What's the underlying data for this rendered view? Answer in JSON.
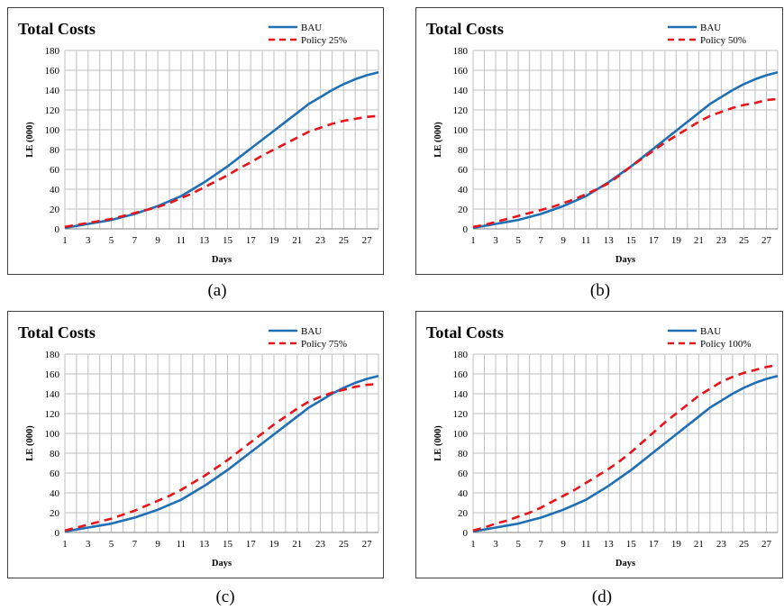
{
  "colors": {
    "bau": "#1F6FB4",
    "policy": "#E8141B",
    "grid": "#BFBFBF",
    "frame": "#404040"
  },
  "chart_data": [
    {
      "type": "line",
      "caption": "(a)",
      "title": "Total Costs",
      "xlabel": "Days",
      "ylabel": "LE (000)",
      "xlim": [
        1,
        28
      ],
      "ylim": [
        0,
        180
      ],
      "yticks": [
        0,
        20,
        40,
        60,
        80,
        100,
        120,
        140,
        160,
        180
      ],
      "xticks": [
        1,
        3,
        5,
        7,
        9,
        11,
        13,
        15,
        17,
        19,
        21,
        23,
        25,
        27
      ],
      "legend": "top-right",
      "grid": true,
      "series": [
        {
          "name": "BAU",
          "style": "solid",
          "x": [
            1,
            2,
            3,
            4,
            5,
            6,
            7,
            8,
            9,
            10,
            11,
            12,
            13,
            14,
            15,
            16,
            17,
            18,
            19,
            20,
            21,
            22,
            23,
            24,
            25,
            26,
            27,
            28
          ],
          "values": [
            1,
            3,
            5,
            7,
            9,
            12,
            15,
            19,
            23,
            28,
            33,
            40,
            47,
            55,
            63,
            72,
            81,
            90,
            99,
            108,
            117,
            126,
            133,
            140,
            146,
            151,
            155,
            158
          ]
        },
        {
          "name": "Policy 25%",
          "style": "dashed",
          "x": [
            1,
            2,
            3,
            4,
            5,
            6,
            7,
            8,
            9,
            10,
            11,
            12,
            13,
            14,
            15,
            16,
            17,
            18,
            19,
            20,
            21,
            22,
            23,
            24,
            25,
            26,
            27,
            28
          ],
          "values": [
            2,
            4,
            6,
            8,
            10,
            13,
            16,
            19,
            22,
            26,
            31,
            36,
            42,
            48,
            54,
            61,
            67,
            74,
            80,
            86,
            92,
            98,
            102,
            106,
            109,
            111,
            113,
            114
          ]
        }
      ]
    },
    {
      "type": "line",
      "caption": "(b)",
      "title": "Total Costs",
      "xlabel": "Days",
      "ylabel": "LE (000)",
      "xlim": [
        1,
        28
      ],
      "ylim": [
        0,
        180
      ],
      "yticks": [
        0,
        20,
        40,
        60,
        80,
        100,
        120,
        140,
        160,
        180
      ],
      "xticks": [
        1,
        3,
        5,
        7,
        9,
        11,
        13,
        15,
        17,
        19,
        21,
        23,
        25,
        27
      ],
      "legend": "top-right",
      "grid": true,
      "series": [
        {
          "name": "BAU",
          "style": "solid",
          "x": [
            1,
            2,
            3,
            4,
            5,
            6,
            7,
            8,
            9,
            10,
            11,
            12,
            13,
            14,
            15,
            16,
            17,
            18,
            19,
            20,
            21,
            22,
            23,
            24,
            25,
            26,
            27,
            28
          ],
          "values": [
            1,
            3,
            5,
            7,
            9,
            12,
            15,
            19,
            23,
            28,
            33,
            40,
            47,
            55,
            63,
            72,
            81,
            90,
            99,
            108,
            117,
            126,
            133,
            140,
            146,
            151,
            155,
            158
          ]
        },
        {
          "name": "Policy 50%",
          "style": "dashed",
          "x": [
            1,
            2,
            3,
            4,
            5,
            6,
            7,
            8,
            9,
            10,
            11,
            12,
            13,
            14,
            15,
            16,
            17,
            18,
            19,
            20,
            21,
            22,
            23,
            24,
            25,
            26,
            27,
            28
          ],
          "values": [
            2,
            4,
            7,
            10,
            13,
            16,
            19,
            22,
            26,
            30,
            35,
            40,
            46,
            54,
            63,
            71,
            79,
            87,
            94,
            101,
            108,
            114,
            118,
            122,
            125,
            127,
            130,
            131
          ]
        }
      ]
    },
    {
      "type": "line",
      "caption": "(c)",
      "title": "Total Costs",
      "xlabel": "Days",
      "ylabel": "LE (000)",
      "xlim": [
        1,
        28
      ],
      "ylim": [
        0,
        180
      ],
      "yticks": [
        0,
        20,
        40,
        60,
        80,
        100,
        120,
        140,
        160,
        180
      ],
      "xticks": [
        1,
        3,
        5,
        7,
        9,
        11,
        13,
        15,
        17,
        19,
        21,
        23,
        25,
        27
      ],
      "legend": "top-right",
      "grid": true,
      "series": [
        {
          "name": "BAU",
          "style": "solid",
          "x": [
            1,
            2,
            3,
            4,
            5,
            6,
            7,
            8,
            9,
            10,
            11,
            12,
            13,
            14,
            15,
            16,
            17,
            18,
            19,
            20,
            21,
            22,
            23,
            24,
            25,
            26,
            27,
            28
          ],
          "values": [
            1,
            3,
            5,
            7,
            9,
            12,
            15,
            19,
            23,
            28,
            33,
            40,
            47,
            55,
            63,
            72,
            81,
            90,
            99,
            108,
            117,
            126,
            133,
            140,
            146,
            151,
            155,
            158
          ]
        },
        {
          "name": "Policy 75%",
          "style": "dashed",
          "x": [
            1,
            2,
            3,
            4,
            5,
            6,
            7,
            8,
            9,
            10,
            11,
            12,
            13,
            14,
            15,
            16,
            17,
            18,
            19,
            20,
            21,
            22,
            23,
            24,
            25,
            26,
            27,
            28
          ],
          "values": [
            2,
            5,
            8,
            11,
            14,
            18,
            22,
            27,
            32,
            37,
            43,
            50,
            57,
            65,
            73,
            82,
            91,
            100,
            109,
            117,
            125,
            132,
            137,
            141,
            144,
            147,
            149,
            150
          ]
        }
      ]
    },
    {
      "type": "line",
      "caption": "(d)",
      "title": "Total Costs",
      "xlabel": "Days",
      "ylabel": "LE (000)",
      "xlim": [
        1,
        28
      ],
      "ylim": [
        0,
        180
      ],
      "yticks": [
        0,
        20,
        40,
        60,
        80,
        100,
        120,
        140,
        160,
        180
      ],
      "xticks": [
        1,
        3,
        5,
        7,
        9,
        11,
        13,
        15,
        17,
        19,
        21,
        23,
        25,
        27
      ],
      "legend": "top-right",
      "grid": true,
      "series": [
        {
          "name": "BAU",
          "style": "solid",
          "x": [
            1,
            2,
            3,
            4,
            5,
            6,
            7,
            8,
            9,
            10,
            11,
            12,
            13,
            14,
            15,
            16,
            17,
            18,
            19,
            20,
            21,
            22,
            23,
            24,
            25,
            26,
            27,
            28
          ],
          "values": [
            1,
            3,
            5,
            7,
            9,
            12,
            15,
            19,
            23,
            28,
            33,
            40,
            47,
            55,
            63,
            72,
            81,
            90,
            99,
            108,
            117,
            126,
            133,
            140,
            146,
            151,
            155,
            158
          ]
        },
        {
          "name": "Policy 100%",
          "style": "dashed",
          "x": [
            1,
            2,
            3,
            4,
            5,
            6,
            7,
            8,
            9,
            10,
            11,
            12,
            13,
            14,
            15,
            16,
            17,
            18,
            19,
            20,
            21,
            22,
            23,
            24,
            25,
            26,
            27,
            28
          ],
          "values": [
            2,
            5,
            9,
            12,
            16,
            20,
            25,
            31,
            37,
            43,
            50,
            57,
            64,
            72,
            81,
            91,
            101,
            111,
            120,
            129,
            138,
            145,
            152,
            157,
            161,
            164,
            167,
            169
          ]
        }
      ]
    }
  ]
}
